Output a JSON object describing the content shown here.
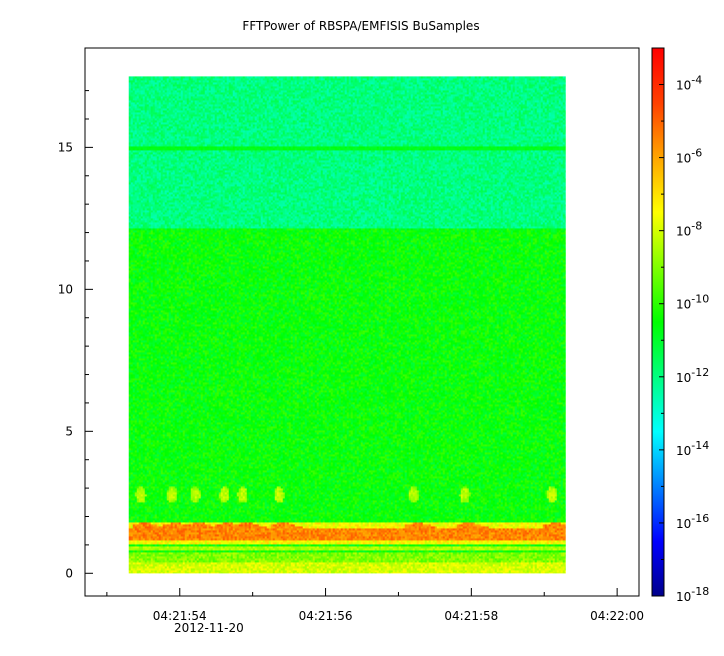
{
  "chart_data": {
    "type": "heatmap",
    "title": "FFTPower of RBSPA/EMFISIS  BuSamples",
    "xlabel": "",
    "ylabel": "",
    "x_axis": {
      "ticks": [
        "04:21:54",
        "04:21:56",
        "04:21:58",
        "04:22:00"
      ],
      "date_label": "2012-11-20",
      "range_seconds": [
        52.7,
        60.3
      ],
      "data_range_seconds": [
        53.3,
        59.3
      ]
    },
    "y_axis": {
      "ticks": [
        0,
        5,
        10,
        15
      ],
      "range": [
        -0.8,
        18.5
      ],
      "data_range": [
        0,
        17.5
      ]
    },
    "colorbar": {
      "scale": "log",
      "range": [
        1e-18,
        0.001
      ],
      "ticks": [
        {
          "base": "10",
          "exp": "-4",
          "value": 0.0001
        },
        {
          "base": "10",
          "exp": "-6",
          "value": 1e-06
        },
        {
          "base": "10",
          "exp": "-8",
          "value": 1e-08
        },
        {
          "base": "10",
          "exp": "-10",
          "value": 1e-10
        },
        {
          "base": "10",
          "exp": "-12",
          "value": 1e-12
        },
        {
          "base": "10",
          "exp": "-14",
          "value": 1e-14
        },
        {
          "base": "10",
          "exp": "-16",
          "value": 1e-16
        },
        {
          "base": "10",
          "exp": "-18",
          "value": 1e-18
        }
      ],
      "colors": [
        "#00008b",
        "#0000ff",
        "#0080ff",
        "#00ffff",
        "#00ff80",
        "#00ff00",
        "#80ff00",
        "#ffff00",
        "#ffa500",
        "#ff4000",
        "#ff0000"
      ]
    },
    "features": {
      "background_below_12": {
        "frequency_range": [
          0.5,
          12.2
        ],
        "log_power": -10.5
      },
      "background_above_12": {
        "frequency_range": [
          12.2,
          17.5
        ],
        "log_power": -12
      },
      "narrowband_line": {
        "frequency": 15.0,
        "log_power": -10.8
      },
      "strong_band": {
        "frequency_range": [
          1.2,
          1.6
        ],
        "log_power": -5.5
      },
      "bottom_band": {
        "frequency_range": [
          0,
          0.4
        ],
        "log_power": -8
      },
      "blob_times_seconds": [
        53.45,
        53.88,
        54.2,
        54.6,
        54.85,
        55.35,
        57.2,
        57.9,
        59.1
      ],
      "blob_frequency": 2.8
    }
  }
}
